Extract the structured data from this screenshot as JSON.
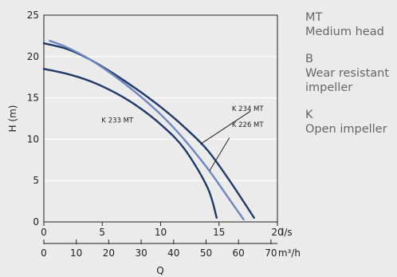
{
  "chart_data": {
    "type": "line",
    "xlabel": "Q",
    "ylabel": "H (m)",
    "x_primary": {
      "unit": "l/s",
      "range": [
        0,
        20
      ],
      "ticks": [
        0,
        5,
        10,
        15,
        20
      ]
    },
    "x_secondary": {
      "unit": "m³/h",
      "range": [
        0,
        72
      ],
      "ticks": [
        0,
        10,
        20,
        30,
        40,
        50,
        60,
        70
      ]
    },
    "y": {
      "range": [
        0,
        25
      ],
      "ticks": [
        0,
        5,
        10,
        15,
        20,
        25
      ]
    },
    "grid": "horizontal",
    "series": [
      {
        "name": "K 233 MT",
        "color": "#1f3a66",
        "points": [
          [
            0,
            18.5
          ],
          [
            2,
            17.9
          ],
          [
            4,
            17.0
          ],
          [
            6,
            15.7
          ],
          [
            8,
            14.0
          ],
          [
            10,
            11.8
          ],
          [
            12,
            8.9
          ],
          [
            14,
            4.2
          ],
          [
            14.8,
            0.5
          ]
        ]
      },
      {
        "name": "K 234 MT",
        "color": "#1f3a66",
        "points": [
          [
            0,
            21.6
          ],
          [
            2,
            20.9
          ],
          [
            4,
            19.6
          ],
          [
            6,
            17.9
          ],
          [
            8,
            16.0
          ],
          [
            10,
            13.9
          ],
          [
            12,
            11.5
          ],
          [
            14,
            8.7
          ],
          [
            16,
            4.8
          ],
          [
            18,
            0.5
          ]
        ]
      },
      {
        "name": "K 226 MT",
        "color": "#6f86bf",
        "points": [
          [
            0.5,
            21.9
          ],
          [
            2,
            21.1
          ],
          [
            4,
            19.6
          ],
          [
            6,
            17.7
          ],
          [
            8,
            15.5
          ],
          [
            10,
            13.0
          ],
          [
            12,
            10.0
          ],
          [
            14,
            6.5
          ],
          [
            16,
            2.5
          ],
          [
            17.1,
            0.3
          ]
        ]
      }
    ]
  },
  "legend": [
    {
      "code": "MT",
      "desc": "Medium head"
    },
    {
      "code": "B",
      "desc": "Wear resistant impeller"
    },
    {
      "code": "K",
      "desc": "Open impeller"
    }
  ]
}
